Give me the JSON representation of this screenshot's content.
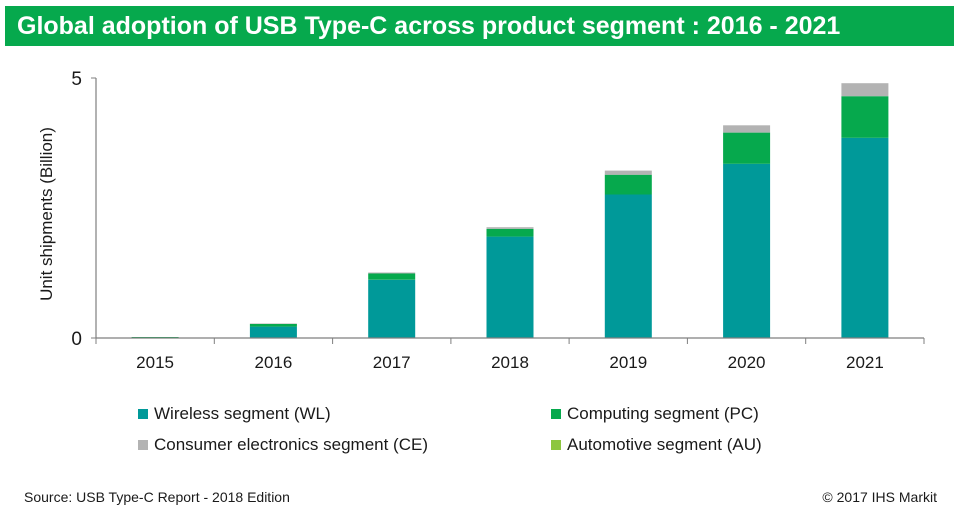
{
  "header": {
    "title": "Global adoption of USB Type-C across product segment : 2016 - 2021"
  },
  "chart_data": {
    "type": "bar",
    "stacked": true,
    "categories": [
      "2015",
      "2016",
      "2017",
      "2018",
      "2019",
      "2020",
      "2021"
    ],
    "series": [
      {
        "name": "Wireless segment (WL)",
        "color": "#009999",
        "values": [
          0.01,
          0.22,
          1.12,
          1.95,
          2.76,
          3.35,
          3.85
        ]
      },
      {
        "name": "Computing segment (PC)",
        "color": "#06a94d",
        "values": [
          0.01,
          0.05,
          0.12,
          0.15,
          0.38,
          0.6,
          0.8
        ]
      },
      {
        "name": "Consumer electronics segment (CE)",
        "color": "#b3b3b3",
        "values": [
          0.0,
          0.01,
          0.02,
          0.03,
          0.08,
          0.14,
          0.25
        ]
      },
      {
        "name": "Automotive segment (AU)",
        "color": "#8dc63f",
        "values": [
          0.0,
          0.0,
          0.0,
          0.0,
          0.0,
          0.0,
          0.0
        ]
      }
    ],
    "ylabel": "Unit shipments (Billion)",
    "xlabel": "",
    "ylim": [
      0,
      5
    ],
    "yticks": [
      "0",
      "5"
    ],
    "grid": false,
    "legend_position": "bottom"
  },
  "footer": {
    "source": "Source: USB Type-C Report - 2018 Edition",
    "copyright": "© 2017 IHS Markit"
  }
}
